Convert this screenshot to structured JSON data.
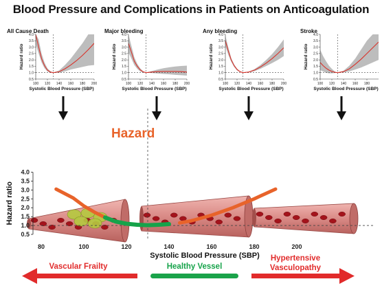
{
  "title": "Blood Pressure and Complications in Patients on Anticoagulation",
  "colors": {
    "small_curve": "#d9322a",
    "small_band": "#bdbdbd",
    "hazard_red": "#e8632a",
    "hazard_green": "#16a34a",
    "vessel": "#d98a86",
    "arrow_red": "#e12b2b",
    "bar_green": "#1aa34a",
    "frailty_text": "#e12b2b",
    "healthy_text": "#16a34a",
    "hypertensive_text": "#e12b2b"
  },
  "chart_data": [
    {
      "type": "line",
      "title": "All Cause Death",
      "xlabel": "Systolic Blood Pressure (SBP)",
      "ylabel": "Hazard ratio",
      "xlim": [
        100,
        200
      ],
      "ylim": [
        0.5,
        4.0
      ],
      "xticks": [
        100,
        120,
        140,
        160,
        180,
        200
      ],
      "yticks": [
        "0.5",
        "1.0",
        "1.5",
        "2.0",
        "2.5",
        "3.0",
        "3.5",
        "4.0"
      ],
      "reference_x": 130,
      "reference_y": 1.0,
      "series": [
        {
          "x": [
            100,
            105,
            110,
            115,
            120,
            125,
            130,
            140,
            150,
            160,
            170,
            180,
            190,
            200
          ],
          "y": [
            4.0,
            3.0,
            2.1,
            1.55,
            1.2,
            1.05,
            1.0,
            1.07,
            1.3,
            1.6,
            1.95,
            2.35,
            2.8,
            3.3
          ],
          "lower": [
            3.2,
            2.5,
            1.8,
            1.35,
            1.1,
            1.0,
            1.0,
            1.0,
            1.1,
            1.25,
            1.35,
            1.45,
            1.55,
            1.6
          ],
          "upper": [
            4.0,
            3.6,
            2.5,
            1.8,
            1.35,
            1.12,
            1.0,
            1.17,
            1.6,
            2.1,
            2.7,
            3.3,
            4.0,
            4.0
          ]
        }
      ]
    },
    {
      "type": "line",
      "title": "Major bleeding",
      "xlabel": "Systolic Blood Pressure (SBP)",
      "ylabel": "Hazard ratio",
      "xlim": [
        100,
        200
      ],
      "ylim": [
        0.5,
        4.0
      ],
      "xticks": [
        100,
        120,
        140,
        160,
        180,
        200
      ],
      "yticks": [
        "0.5",
        "1.0",
        "1.5",
        "2.0",
        "2.5",
        "3.0",
        "3.5",
        "4.0"
      ],
      "reference_x": 130,
      "reference_y": 1.0,
      "series": [
        {
          "x": [
            100,
            105,
            110,
            115,
            120,
            125,
            130,
            140,
            150,
            160,
            170,
            180,
            190,
            200
          ],
          "y": [
            3.3,
            2.6,
            1.9,
            1.5,
            1.22,
            1.07,
            1.0,
            1.05,
            1.08,
            1.1,
            1.1,
            1.1,
            1.08,
            1.05
          ],
          "lower": [
            2.6,
            2.1,
            1.6,
            1.3,
            1.1,
            1.0,
            1.0,
            0.97,
            0.93,
            0.9,
            0.87,
            0.83,
            0.8,
            0.77
          ],
          "upper": [
            4.0,
            3.1,
            2.2,
            1.7,
            1.35,
            1.12,
            1.0,
            1.13,
            1.25,
            1.35,
            1.42,
            1.48,
            1.52,
            1.55
          ]
        }
      ]
    },
    {
      "type": "line",
      "title": "Any bleeding",
      "xlabel": "Systolic Blood Pressure (SBP)",
      "ylabel": "Hazard ratio",
      "xlim": [
        100,
        200
      ],
      "ylim": [
        0.5,
        4.0
      ],
      "xticks": [
        100,
        120,
        140,
        160,
        180,
        200
      ],
      "yticks": [
        "0.5",
        "1.0",
        "1.5",
        "2.0",
        "2.5",
        "3.0",
        "3.5",
        "4.0"
      ],
      "reference_x": 130,
      "reference_y": 1.0,
      "series": [
        {
          "x": [
            100,
            105,
            110,
            115,
            120,
            125,
            130,
            140,
            150,
            160,
            170,
            180,
            190,
            200
          ],
          "y": [
            3.5,
            2.7,
            2.0,
            1.55,
            1.25,
            1.08,
            1.0,
            1.05,
            1.2,
            1.45,
            1.75,
            2.1,
            2.5,
            2.95
          ],
          "lower": [
            3.1,
            2.4,
            1.85,
            1.45,
            1.18,
            1.05,
            1.0,
            1.02,
            1.12,
            1.3,
            1.52,
            1.75,
            2.0,
            2.3
          ],
          "upper": [
            3.9,
            3.0,
            2.15,
            1.65,
            1.32,
            1.11,
            1.0,
            1.08,
            1.28,
            1.6,
            2.0,
            2.45,
            3.0,
            3.6
          ]
        }
      ]
    },
    {
      "type": "line",
      "title": "Stroke",
      "xlabel": "Systolic Blood Pressure (SBP)",
      "ylabel": "Hazard ratio",
      "xlim": [
        100,
        200
      ],
      "ylim": [
        0.5,
        4.0
      ],
      "xticks": [
        100,
        120,
        140,
        160,
        180
      ],
      "yticks": [
        "0.5",
        "1.0",
        "1.5",
        "2.0",
        "2.5",
        "3.0",
        "3.5",
        "4.0"
      ],
      "reference_x": 130,
      "reference_y": 1.0,
      "series": [
        {
          "x": [
            100,
            105,
            110,
            115,
            120,
            125,
            130,
            140,
            150,
            160,
            170,
            180,
            190,
            200
          ],
          "y": [
            1.8,
            1.55,
            1.35,
            1.2,
            1.1,
            1.03,
            1.0,
            1.08,
            1.3,
            1.65,
            2.05,
            2.5,
            2.95,
            3.4
          ],
          "lower": [
            1.2,
            1.1,
            1.0,
            0.95,
            0.95,
            0.97,
            1.0,
            1.02,
            1.1,
            1.25,
            1.4,
            1.6,
            1.8,
            2.0
          ],
          "upper": [
            2.8,
            2.3,
            1.9,
            1.55,
            1.3,
            1.1,
            1.0,
            1.15,
            1.55,
            2.1,
            2.8,
            3.5,
            4.0,
            4.0
          ]
        }
      ]
    },
    {
      "type": "line",
      "title": "",
      "xlabel": "Systolic Blood Pressure (SBP)",
      "ylabel": "Hazard ratio",
      "xlim": [
        70,
        200
      ],
      "ylim": [
        0.5,
        4.0
      ],
      "xticks": [
        80,
        100,
        120,
        140,
        160,
        180,
        200
      ],
      "yticks": [
        "0.5",
        "1.0",
        "1.5",
        "2.0",
        "2.5",
        "3.0",
        "3.5",
        "4.0"
      ],
      "reference_x": 130,
      "reference_y": 1.0,
      "series": [
        {
          "name": "Hazard",
          "x": [
            87,
            95,
            100,
            105,
            110,
            115,
            120,
            125,
            130,
            135,
            140,
            145,
            150,
            160,
            170,
            180,
            190
          ],
          "y": [
            3.05,
            2.55,
            2.1,
            1.75,
            1.45,
            1.22,
            1.1,
            1.04,
            1.02,
            1.04,
            1.08,
            1.15,
            1.25,
            1.58,
            2.0,
            2.5,
            3.05
          ]
        }
      ],
      "annotations": [
        "Hazard"
      ],
      "green_range": [
        110,
        143
      ]
    }
  ],
  "bottom_labels": {
    "frailty": "Vascular Frailty",
    "healthy": "Healthy Vessel",
    "hypertensive": "Hypertensive\nVasculopathy",
    "hypertensive_line1": "Hypertensive",
    "hypertensive_line2": "Vasculopathy"
  }
}
